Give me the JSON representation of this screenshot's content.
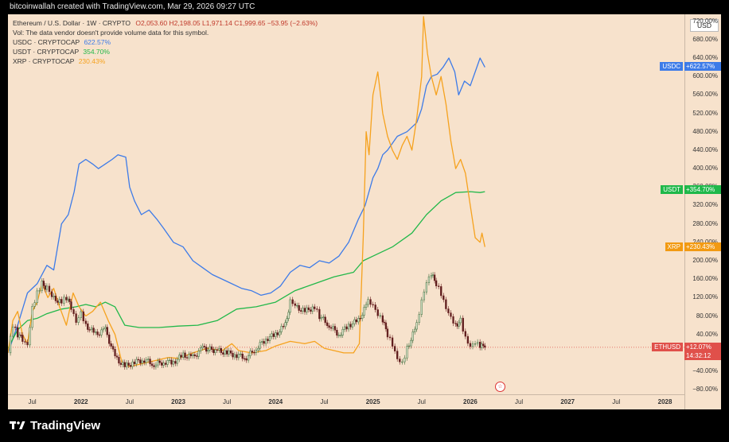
{
  "header": {
    "caption": "bitcoinwallah created with TradingView.com, Mar 29, 2026 09:27 UTC"
  },
  "currency_button": "USD",
  "legend": {
    "main": "Ethereum / U.S. Dollar · 1W · CRYPTO",
    "ohlc": "O2,053.60  H2,198.05  L1,971.14  C1,999.65  −53.95 (−2.63%)",
    "vol_note": "Vol: The data vendor doesn't provide volume data for this symbol.",
    "items": [
      {
        "name": "USDC · CRYPTOCAP",
        "value": "622.57%",
        "color": "#3d7be8"
      },
      {
        "name": "USDT · CRYPTOCAP",
        "value": "354.70%",
        "color": "#22b84a"
      },
      {
        "name": "XRP · CRYPTOCAP",
        "value": "230.43%",
        "color": "#f6a21e"
      }
    ]
  },
  "price_tags": [
    {
      "label": "USDC",
      "value": "+622.57%",
      "color": "#3d7be8",
      "y": 622.57
    },
    {
      "label": "USDT",
      "value": "+354.70%",
      "color": "#1fb84a",
      "y": 354.7
    },
    {
      "label": "XRP",
      "value": "+230.43%",
      "color": "#f29a12",
      "y": 230.43
    },
    {
      "label": "ETHUSD",
      "value": "+12.07%",
      "sub": "14:32:12",
      "color": "#e0504a",
      "y": 12.07
    }
  ],
  "footer": {
    "brand": "TradingView"
  },
  "chart_data": {
    "type": "line",
    "y_unit": "%",
    "ylim": [
      -90,
      735
    ],
    "y_ticks": [
      720,
      680,
      640,
      600,
      560,
      520,
      480,
      440,
      400,
      360,
      320,
      280,
      240,
      200,
      160,
      120,
      80,
      40,
      0,
      -40,
      -80
    ],
    "x_range": [
      2021.25,
      2028.2
    ],
    "x_ticks": [
      {
        "x": 2021.5,
        "label": "Jul",
        "year": false
      },
      {
        "x": 2022.0,
        "label": "2022",
        "year": true
      },
      {
        "x": 2022.5,
        "label": "Jul",
        "year": false
      },
      {
        "x": 2023.0,
        "label": "2023",
        "year": true
      },
      {
        "x": 2023.5,
        "label": "Jul",
        "year": false
      },
      {
        "x": 2024.0,
        "label": "2024",
        "year": true
      },
      {
        "x": 2024.5,
        "label": "Jul",
        "year": false
      },
      {
        "x": 2025.0,
        "label": "2025",
        "year": true
      },
      {
        "x": 2025.5,
        "label": "Jul",
        "year": false
      },
      {
        "x": 2026.0,
        "label": "2026",
        "year": true
      },
      {
        "x": 2026.5,
        "label": "Jul",
        "year": false
      },
      {
        "x": 2027.0,
        "label": "2027",
        "year": true
      },
      {
        "x": 2027.5,
        "label": "Jul",
        "year": false
      },
      {
        "x": 2028.0,
        "label": "2028",
        "year": true
      }
    ],
    "series": [
      {
        "name": "USDC · CRYPTOCAP",
        "color": "#3d7be8",
        "points": [
          [
            2021.25,
            0
          ],
          [
            2021.35,
            60
          ],
          [
            2021.45,
            130
          ],
          [
            2021.55,
            150
          ],
          [
            2021.65,
            190
          ],
          [
            2021.72,
            180
          ],
          [
            2021.8,
            280
          ],
          [
            2021.87,
            300
          ],
          [
            2021.93,
            350
          ],
          [
            2021.98,
            410
          ],
          [
            2022.05,
            420
          ],
          [
            2022.12,
            410
          ],
          [
            2022.18,
            400
          ],
          [
            2022.25,
            410
          ],
          [
            2022.32,
            420
          ],
          [
            2022.38,
            430
          ],
          [
            2022.46,
            425
          ],
          [
            2022.5,
            360
          ],
          [
            2022.55,
            330
          ],
          [
            2022.62,
            300
          ],
          [
            2022.7,
            310
          ],
          [
            2022.78,
            290
          ],
          [
            2022.85,
            270
          ],
          [
            2022.95,
            240
          ],
          [
            2023.05,
            230
          ],
          [
            2023.15,
            200
          ],
          [
            2023.25,
            185
          ],
          [
            2023.35,
            170
          ],
          [
            2023.5,
            155
          ],
          [
            2023.65,
            140
          ],
          [
            2023.75,
            135
          ],
          [
            2023.85,
            125
          ],
          [
            2023.95,
            130
          ],
          [
            2024.05,
            145
          ],
          [
            2024.15,
            175
          ],
          [
            2024.25,
            190
          ],
          [
            2024.35,
            185
          ],
          [
            2024.45,
            200
          ],
          [
            2024.55,
            195
          ],
          [
            2024.65,
            210
          ],
          [
            2024.75,
            240
          ],
          [
            2024.85,
            290
          ],
          [
            2024.92,
            320
          ],
          [
            2025.0,
            380
          ],
          [
            2025.05,
            400
          ],
          [
            2025.1,
            430
          ],
          [
            2025.15,
            440
          ],
          [
            2025.25,
            470
          ],
          [
            2025.35,
            480
          ],
          [
            2025.45,
            500
          ],
          [
            2025.5,
            530
          ],
          [
            2025.55,
            580
          ],
          [
            2025.6,
            600
          ],
          [
            2025.66,
            605
          ],
          [
            2025.72,
            620
          ],
          [
            2025.78,
            640
          ],
          [
            2025.84,
            610
          ],
          [
            2025.88,
            560
          ],
          [
            2025.94,
            590
          ],
          [
            2026.0,
            580
          ],
          [
            2026.05,
            610
          ],
          [
            2026.1,
            640
          ],
          [
            2026.15,
            620
          ]
        ]
      },
      {
        "name": "USDT · CRYPTOCAP",
        "color": "#22b84a",
        "points": [
          [
            2021.25,
            10
          ],
          [
            2021.35,
            50
          ],
          [
            2021.45,
            70
          ],
          [
            2021.55,
            75
          ],
          [
            2021.65,
            85
          ],
          [
            2021.8,
            95
          ],
          [
            2021.95,
            100
          ],
          [
            2022.05,
            105
          ],
          [
            2022.15,
            100
          ],
          [
            2022.25,
            110
          ],
          [
            2022.35,
            100
          ],
          [
            2022.45,
            60
          ],
          [
            2022.6,
            55
          ],
          [
            2022.8,
            55
          ],
          [
            2023.0,
            58
          ],
          [
            2023.2,
            60
          ],
          [
            2023.4,
            70
          ],
          [
            2023.6,
            95
          ],
          [
            2023.8,
            100
          ],
          [
            2024.0,
            110
          ],
          [
            2024.2,
            135
          ],
          [
            2024.4,
            150
          ],
          [
            2024.6,
            165
          ],
          [
            2024.8,
            175
          ],
          [
            2024.9,
            200
          ],
          [
            2025.0,
            210
          ],
          [
            2025.2,
            230
          ],
          [
            2025.4,
            260
          ],
          [
            2025.55,
            300
          ],
          [
            2025.7,
            330
          ],
          [
            2025.85,
            348
          ],
          [
            2026.0,
            350
          ],
          [
            2026.1,
            348
          ],
          [
            2026.15,
            350
          ]
        ]
      },
      {
        "name": "XRP · CRYPTOCAP",
        "color": "#f6a21e",
        "points": [
          [
            2021.25,
            0
          ],
          [
            2021.3,
            70
          ],
          [
            2021.35,
            90
          ],
          [
            2021.4,
            40
          ],
          [
            2021.45,
            20
          ],
          [
            2021.5,
            90
          ],
          [
            2021.55,
            110
          ],
          [
            2021.6,
            150
          ],
          [
            2021.66,
            120
          ],
          [
            2021.72,
            140
          ],
          [
            2021.78,
            100
          ],
          [
            2021.85,
            60
          ],
          [
            2021.92,
            130
          ],
          [
            2021.98,
            100
          ],
          [
            2022.05,
            80
          ],
          [
            2022.12,
            90
          ],
          [
            2022.2,
            110
          ],
          [
            2022.28,
            70
          ],
          [
            2022.35,
            40
          ],
          [
            2022.42,
            -20
          ],
          [
            2022.5,
            -30
          ],
          [
            2022.6,
            -25
          ],
          [
            2022.7,
            -20
          ],
          [
            2022.8,
            -15
          ],
          [
            2022.9,
            -10
          ],
          [
            2023.0,
            -12
          ],
          [
            2023.15,
            0
          ],
          [
            2023.3,
            10
          ],
          [
            2023.45,
            5
          ],
          [
            2023.55,
            20
          ],
          [
            2023.62,
            5
          ],
          [
            2023.75,
            0
          ],
          [
            2023.9,
            5
          ],
          [
            2024.0,
            15
          ],
          [
            2024.15,
            25
          ],
          [
            2024.3,
            20
          ],
          [
            2024.4,
            25
          ],
          [
            2024.5,
            10
          ],
          [
            2024.6,
            5
          ],
          [
            2024.7,
            0
          ],
          [
            2024.8,
            0
          ],
          [
            2024.86,
            20
          ],
          [
            2024.9,
            250
          ],
          [
            2024.93,
            480
          ],
          [
            2024.96,
            430
          ],
          [
            2025.0,
            560
          ],
          [
            2025.05,
            610
          ],
          [
            2025.1,
            520
          ],
          [
            2025.15,
            470
          ],
          [
            2025.2,
            440
          ],
          [
            2025.25,
            420
          ],
          [
            2025.3,
            450
          ],
          [
            2025.35,
            470
          ],
          [
            2025.4,
            440
          ],
          [
            2025.45,
            510
          ],
          [
            2025.5,
            600
          ],
          [
            2025.52,
            730
          ],
          [
            2025.56,
            650
          ],
          [
            2025.6,
            600
          ],
          [
            2025.65,
            560
          ],
          [
            2025.7,
            600
          ],
          [
            2025.75,
            540
          ],
          [
            2025.8,
            460
          ],
          [
            2025.85,
            400
          ],
          [
            2025.9,
            420
          ],
          [
            2025.95,
            390
          ],
          [
            2026.0,
            320
          ],
          [
            2026.05,
            250
          ],
          [
            2026.1,
            240
          ],
          [
            2026.12,
            260
          ],
          [
            2026.15,
            230
          ]
        ]
      },
      {
        "name": "ETHUSD",
        "color": "#6b4a3a",
        "style": "candles",
        "points": [
          [
            2021.25,
            0
          ],
          [
            2021.3,
            60
          ],
          [
            2021.35,
            40
          ],
          [
            2021.4,
            30
          ],
          [
            2021.45,
            20
          ],
          [
            2021.5,
            100
          ],
          [
            2021.55,
            130
          ],
          [
            2021.6,
            150
          ],
          [
            2021.65,
            140
          ],
          [
            2021.7,
            120
          ],
          [
            2021.8,
            110
          ],
          [
            2021.85,
            120
          ],
          [
            2021.9,
            100
          ],
          [
            2021.95,
            70
          ],
          [
            2022.0,
            90
          ],
          [
            2022.05,
            60
          ],
          [
            2022.15,
            40
          ],
          [
            2022.25,
            50
          ],
          [
            2022.35,
            -10
          ],
          [
            2022.45,
            -30
          ],
          [
            2022.55,
            -20
          ],
          [
            2022.65,
            -15
          ],
          [
            2022.75,
            -25
          ],
          [
            2022.85,
            -20
          ],
          [
            2022.95,
            -20
          ],
          [
            2023.05,
            -5
          ],
          [
            2023.15,
            -10
          ],
          [
            2023.25,
            10
          ],
          [
            2023.4,
            5
          ],
          [
            2023.5,
            0
          ],
          [
            2023.6,
            -5
          ],
          [
            2023.7,
            -10
          ],
          [
            2023.8,
            10
          ],
          [
            2023.9,
            30
          ],
          [
            2024.0,
            40
          ],
          [
            2024.1,
            60
          ],
          [
            2024.15,
            110
          ],
          [
            2024.2,
            100
          ],
          [
            2024.3,
            90
          ],
          [
            2024.4,
            100
          ],
          [
            2024.45,
            80
          ],
          [
            2024.55,
            60
          ],
          [
            2024.65,
            40
          ],
          [
            2024.75,
            60
          ],
          [
            2024.85,
            70
          ],
          [
            2024.95,
            110
          ],
          [
            2025.0,
            100
          ],
          [
            2025.05,
            80
          ],
          [
            2025.1,
            70
          ],
          [
            2025.15,
            40
          ],
          [
            2025.2,
            20
          ],
          [
            2025.25,
            -10
          ],
          [
            2025.3,
            -20
          ],
          [
            2025.35,
            10
          ],
          [
            2025.45,
            60
          ],
          [
            2025.5,
            110
          ],
          [
            2025.55,
            150
          ],
          [
            2025.6,
            170
          ],
          [
            2025.65,
            150
          ],
          [
            2025.7,
            130
          ],
          [
            2025.75,
            100
          ],
          [
            2025.8,
            80
          ],
          [
            2025.85,
            60
          ],
          [
            2025.9,
            70
          ],
          [
            2025.95,
            30
          ],
          [
            2026.0,
            10
          ],
          [
            2026.05,
            20
          ],
          [
            2026.1,
            15
          ],
          [
            2026.15,
            12
          ]
        ]
      }
    ]
  }
}
